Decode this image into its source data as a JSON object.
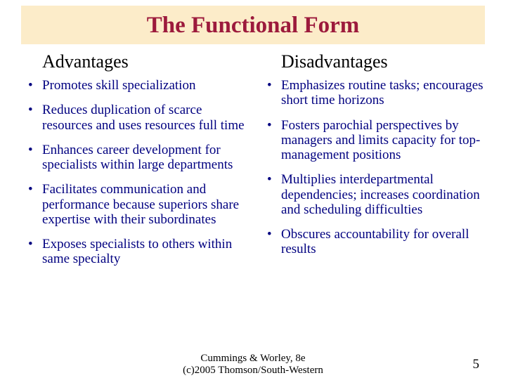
{
  "title": "The Functional Form",
  "left": {
    "heading": "Advantages",
    "items": [
      "Promotes skill specialization",
      "Reduces duplication of scarce resources and uses resources full time",
      "Enhances career development for specialists within large departments",
      "Facilitates communication and performance because superiors share expertise with their subordinates",
      "Exposes specialists to others within same specialty"
    ]
  },
  "right": {
    "heading": "Disadvantages",
    "items": [
      "Emphasizes routine tasks; encourages short time horizons",
      "Fosters parochial perspectives by managers and limits capacity for top-management positions",
      "Multiplies interdepartmental dependencies; increases coordination and scheduling difficulties",
      "Obscures accountability for overall results"
    ]
  },
  "footer_line1": "Cummings & Worley, 8e",
  "footer_line2": "(c)2005 Thomson/South-Western",
  "page_number": "5",
  "colors": {
    "title_bg": "#fcecc9",
    "title_text": "#9c1a3c",
    "body_text": "#000080",
    "heading_text": "#000000",
    "footer_text": "#000000"
  }
}
